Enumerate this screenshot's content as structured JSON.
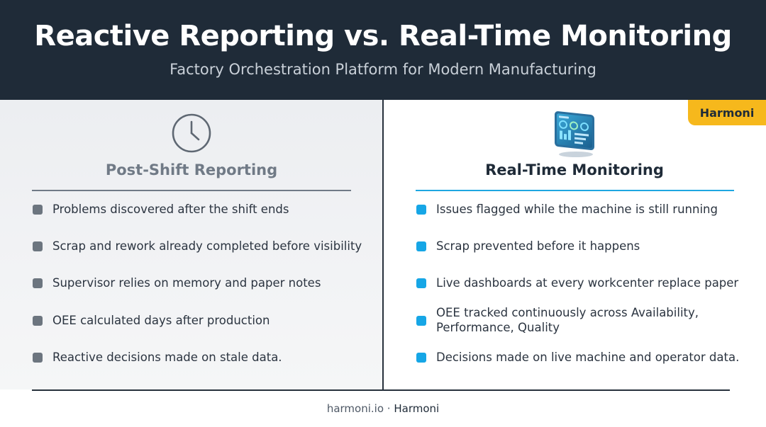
{
  "header": {
    "title": "Reactive Reporting vs. Real-Time Monitoring",
    "subtitle": "Factory Orchestration Platform for Modern Manufacturing"
  },
  "badge": {
    "label": "Harmoni"
  },
  "left_column": {
    "icon": "clock-icon",
    "title": "Post-Shift Reporting",
    "items": [
      "Problems discovered after the shift ends",
      "Scrap and rework already completed before visibility",
      "Supervisor relies on memory and paper notes",
      "OEE calculated days after production",
      "Reactive decisions made on stale data."
    ]
  },
  "right_column": {
    "icon": "dashboard-monitor-icon",
    "title": "Real-Time Monitoring",
    "items": [
      "Issues flagged while the machine is still running",
      "Scrap prevented before it happens",
      "Live dashboards at every workcenter replace paper",
      "OEE tracked continuously across Availability, Performance, Quality",
      "Decisions made on live machine and operator data."
    ]
  },
  "footer": {
    "site": "harmoni.io",
    "separator": "·",
    "brand": "Harmoni"
  },
  "colors": {
    "header_bg": "#1f2b38",
    "accent_blue": "#16a6e6",
    "badge_yellow": "#f6b81c",
    "muted_gray": "#707a86"
  }
}
